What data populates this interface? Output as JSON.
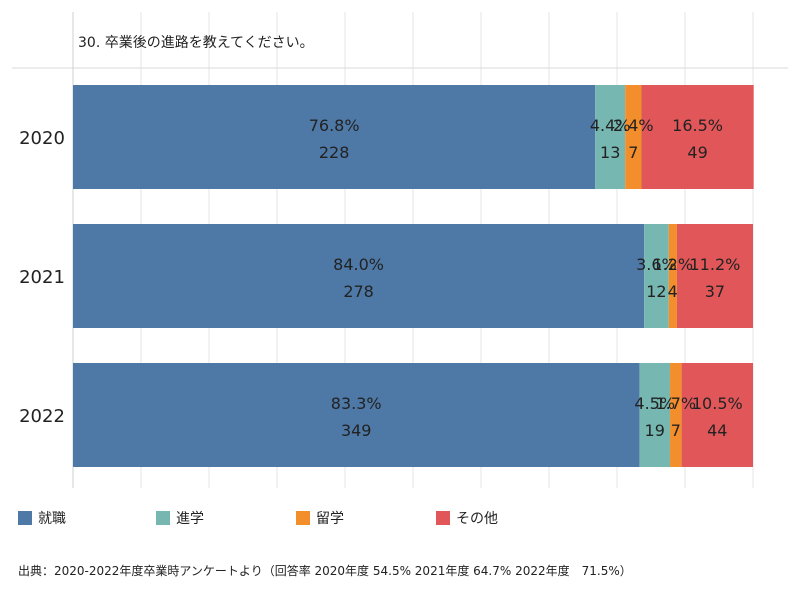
{
  "chart_data": {
    "type": "bar",
    "orientation": "horizontal",
    "stacked": true,
    "title": "30. 卒業後の進路を教えてください。",
    "categories": [
      "2020",
      "2021",
      "2022"
    ],
    "xlim": [
      0,
      100
    ],
    "grid": true,
    "legend_position": "bottom-left",
    "series": [
      {
        "name": "就職",
        "color": "#4e79a7",
        "percent": [
          76.8,
          84.0,
          83.3
        ],
        "percent_labels": [
          "76.8%",
          "84.0%",
          "83.3%"
        ],
        "counts": [
          228,
          278,
          349
        ]
      },
      {
        "name": "進学",
        "color": "#76b7b2",
        "percent": [
          4.4,
          3.6,
          4.5
        ],
        "percent_labels": [
          "4.4%",
          "3.6%",
          "4.5%"
        ],
        "counts": [
          13,
          12,
          19
        ]
      },
      {
        "name": "留学",
        "color": "#f28e2b",
        "percent": [
          2.4,
          1.2,
          1.7
        ],
        "percent_labels": [
          "2.4%",
          "1.2%",
          "1.7%"
        ],
        "counts": [
          7,
          4,
          7
        ]
      },
      {
        "name": "その他",
        "color": "#e15759",
        "percent": [
          16.5,
          11.2,
          10.5
        ],
        "percent_labels": [
          "16.5%",
          "11.2%",
          "10.5%"
        ],
        "counts": [
          49,
          37,
          44
        ]
      }
    ]
  },
  "footnote": "出典：2020-2022年度卒業時アンケートより（回答率 2020年度 54.5% 2021年度 64.7% 2022年度　71.5%）"
}
